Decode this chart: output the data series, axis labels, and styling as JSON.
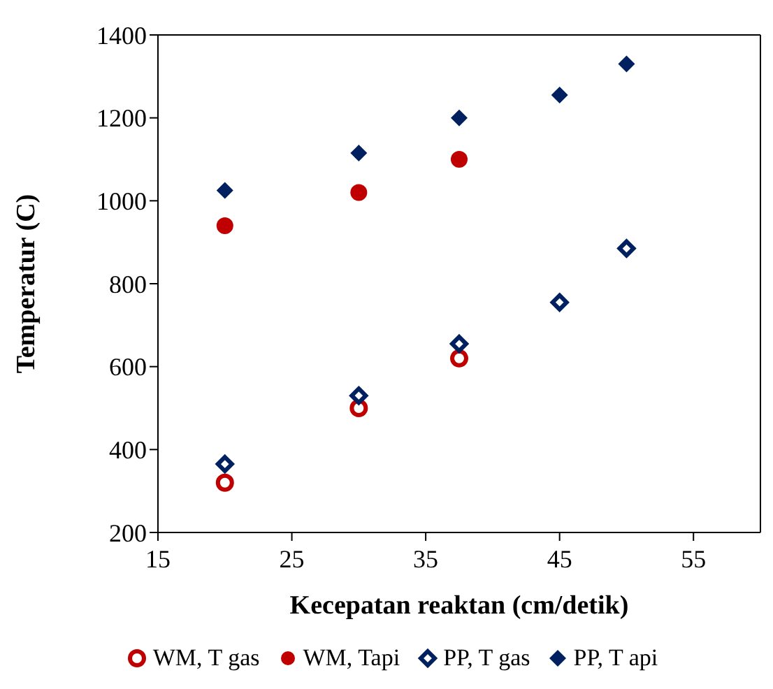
{
  "chart_data": {
    "type": "scatter",
    "xlabel": "Kecepatan reaktan (cm/detik)",
    "ylabel": "Temperatur (C)",
    "xlim": [
      15,
      60
    ],
    "xticks": [
      15,
      25,
      35,
      45,
      55
    ],
    "ylim": [
      200,
      1400
    ],
    "yticks": [
      200,
      400,
      600,
      800,
      1000,
      1200,
      1400
    ],
    "legend": "bottom",
    "series": [
      {
        "name": "WM, T gas",
        "color": "#c00000",
        "marker": "circle",
        "x": [
          20,
          30,
          37.5
        ],
        "values": [
          320,
          500,
          620
        ]
      },
      {
        "name": "WM, Tapi",
        "color": "#c00000",
        "marker": "circle",
        "x": [
          20,
          30,
          37.5
        ],
        "values": [
          940,
          1020,
          1100
        ]
      },
      {
        "name": "PP, T gas",
        "color": "#002060",
        "marker": "diamond",
        "x": [
          20,
          30,
          37.5,
          45,
          50
        ],
        "values": [
          365,
          530,
          655,
          755,
          885
        ]
      },
      {
        "name": "PP, T api",
        "color": "#002060",
        "marker": "diamond",
        "x": [
          20,
          30,
          37.5,
          45,
          50
        ],
        "values": [
          1025,
          1115,
          1200,
          1255,
          1330
        ]
      }
    ]
  }
}
